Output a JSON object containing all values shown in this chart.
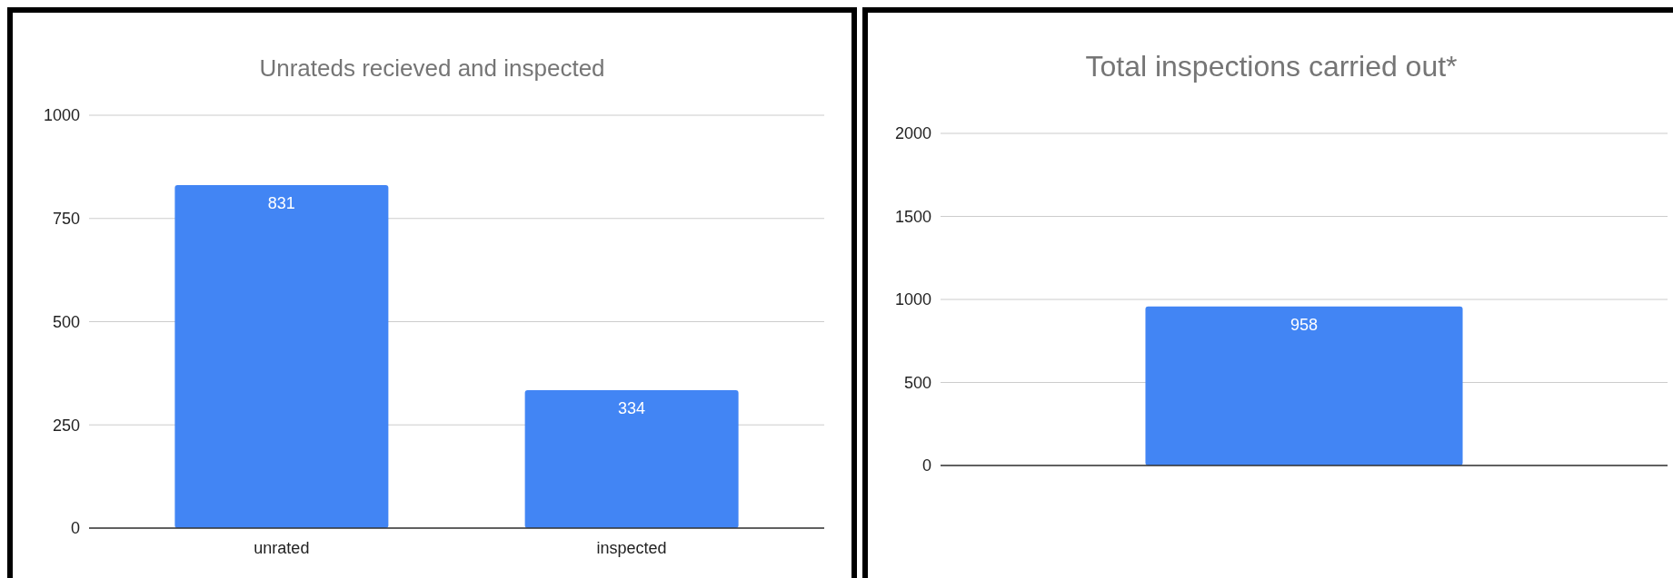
{
  "chart_data": [
    {
      "type": "bar",
      "title": "Unrateds recieved and inspected",
      "categories": [
        "unrated",
        "inspected"
      ],
      "values": [
        831,
        334
      ],
      "color": "#4285f4",
      "ylim": [
        0,
        1000
      ],
      "yticks": [
        0,
        250,
        500,
        750,
        1000
      ],
      "grid": "y",
      "data_labels": true
    },
    {
      "type": "bar",
      "title": "Total inspections carried out*",
      "categories": [
        null
      ],
      "values": [
        958
      ],
      "color": "#4285f4",
      "ylim": [
        0,
        2000
      ],
      "yticks": [
        0,
        500,
        1000,
        1500,
        2000
      ],
      "grid": "y",
      "data_labels": true
    }
  ]
}
